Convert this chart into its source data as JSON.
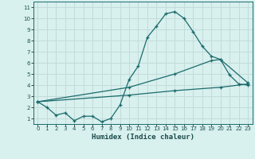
{
  "xlabel": "Humidex (Indice chaleur)",
  "xlim": [
    -0.5,
    23.5
  ],
  "ylim": [
    0.5,
    11.5
  ],
  "xticks": [
    0,
    1,
    2,
    3,
    4,
    5,
    6,
    7,
    8,
    9,
    10,
    11,
    12,
    13,
    14,
    15,
    16,
    17,
    18,
    19,
    20,
    21,
    22,
    23
  ],
  "yticks": [
    1,
    2,
    3,
    4,
    5,
    6,
    7,
    8,
    9,
    10,
    11
  ],
  "bg_color": "#d8f0ee",
  "grid_color": "#c2dcda",
  "line_color": "#1a6b6b",
  "line1_x": [
    0,
    1,
    2,
    3,
    4,
    5,
    6,
    7,
    8,
    9,
    10,
    11,
    12,
    13,
    14,
    15,
    16,
    17,
    18,
    19,
    20,
    21,
    22,
    23
  ],
  "line1_y": [
    2.5,
    2.0,
    1.3,
    1.5,
    0.8,
    1.2,
    1.2,
    0.7,
    1.0,
    2.2,
    4.5,
    5.7,
    8.3,
    9.3,
    10.4,
    10.6,
    10.0,
    8.8,
    7.5,
    6.6,
    6.3,
    4.9,
    4.1,
    4.0
  ],
  "line2_x": [
    0,
    10,
    15,
    20,
    23
  ],
  "line2_y": [
    2.5,
    3.1,
    3.5,
    3.8,
    4.1
  ],
  "line3_x": [
    0,
    10,
    15,
    19,
    20,
    23
  ],
  "line3_y": [
    2.5,
    3.8,
    5.0,
    6.2,
    6.3,
    4.2
  ]
}
